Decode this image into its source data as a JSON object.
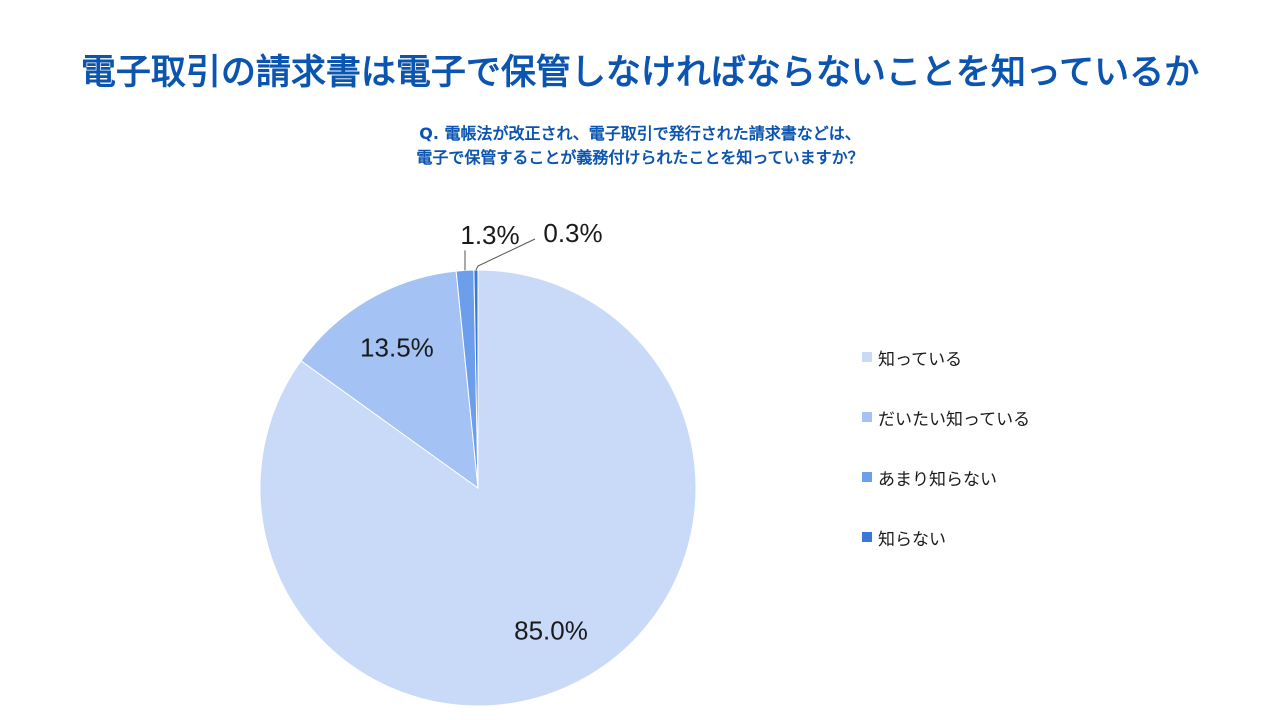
{
  "header": {
    "title": "電子取引の請求書は電子で保管しなければならないことを知っているか",
    "question_line1": "Q. 電帳法が改正され、電子取引で発行された請求書などは、",
    "question_line2": "電子で保管することが義務付けられたことを知っていますか？"
  },
  "colors": {
    "title": "#0b54b0",
    "slices": [
      "#c9daf8",
      "#a4c2f4",
      "#6d9eeb",
      "#3c78d8"
    ]
  },
  "chart_data": {
    "type": "pie",
    "categories": [
      "知っている",
      "だいたい知っている",
      "あまり知らない",
      "知らない"
    ],
    "values": [
      85.0,
      13.5,
      1.3,
      0.3
    ],
    "labels": [
      "85.0%",
      "13.5%",
      "1.3%",
      "0.3%"
    ],
    "legend": "right"
  }
}
